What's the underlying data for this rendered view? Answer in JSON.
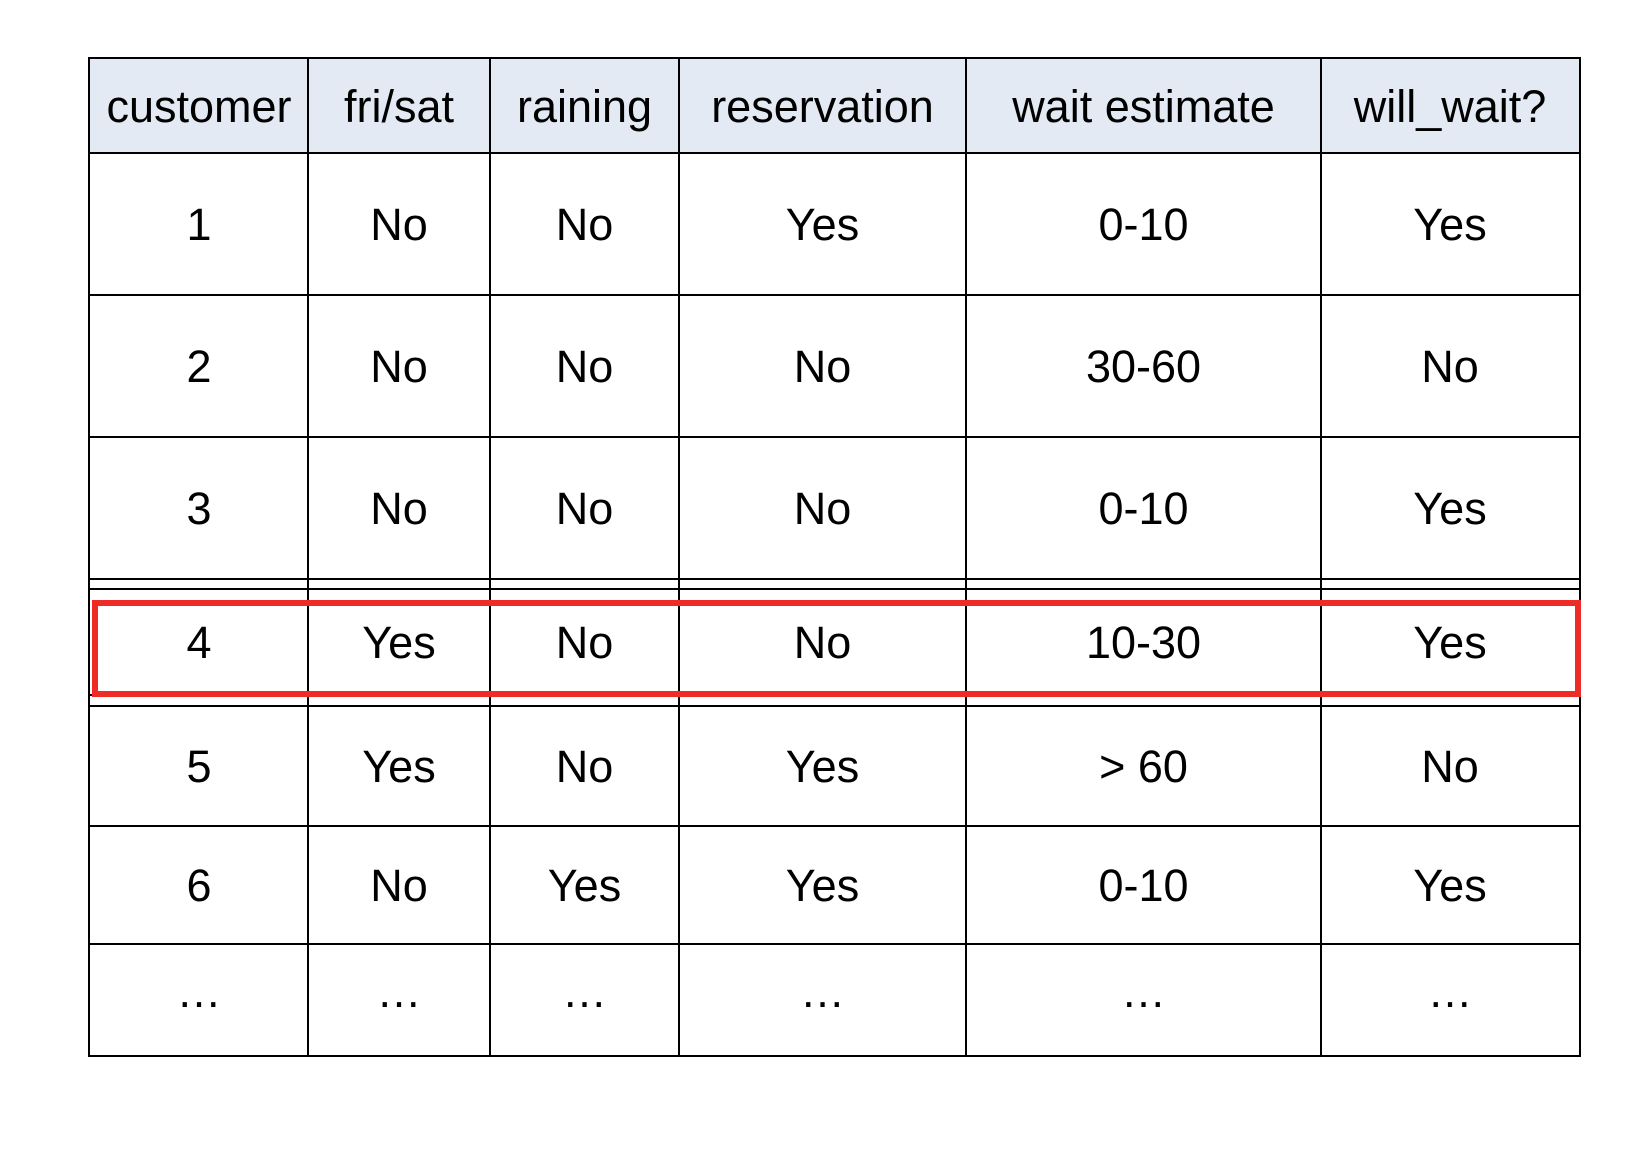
{
  "table": {
    "headers": [
      "customer",
      "fri/sat",
      "raining",
      "reservation",
      "wait estimate",
      "will_wait?"
    ],
    "rows": [
      [
        "1",
        "No",
        "No",
        "Yes",
        "0-10",
        "Yes"
      ],
      [
        "2",
        "No",
        "No",
        "No",
        "30-60",
        "No"
      ],
      [
        "3",
        "No",
        "No",
        "No",
        "0-10",
        "Yes"
      ],
      [
        "4",
        "Yes",
        "No",
        "No",
        "10-30",
        "Yes"
      ],
      [
        "5",
        "Yes",
        "No",
        "Yes",
        "> 60",
        "No"
      ],
      [
        "6",
        "No",
        "Yes",
        "Yes",
        "0-10",
        "Yes"
      ],
      [
        "…",
        "…",
        "…",
        "…",
        "…",
        "…"
      ]
    ],
    "highlighted_row": 4
  },
  "colors": {
    "header_background": "#e3eaf4",
    "grid_line": "#000000",
    "highlight_border": "#ee2b24"
  }
}
